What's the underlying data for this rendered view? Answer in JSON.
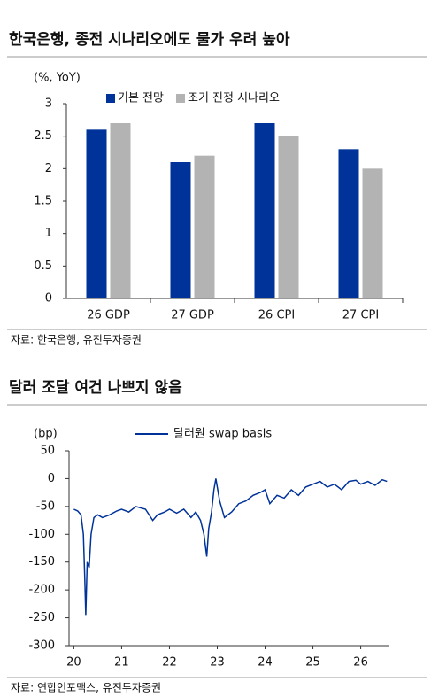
{
  "chart_data": [
    {
      "type": "bar",
      "title": "한국은행, 종전 시나리오에도 물가 우려 높아",
      "y_label": "(%, YoY)",
      "categories": [
        "26 GDP",
        "27 GDP",
        "26 CPI",
        "27 CPI"
      ],
      "series": [
        {
          "name": "기본 전망",
          "color": "#003399",
          "values": [
            2.6,
            2.1,
            2.7,
            2.3
          ]
        },
        {
          "name": "조기 진정 시나리오",
          "color": "#b3b3b3",
          "values": [
            2.7,
            2.2,
            2.5,
            2.0
          ]
        }
      ],
      "ylim": [
        0,
        3
      ],
      "yticks": [
        0,
        0.5,
        1,
        1.5,
        2,
        2.5,
        3
      ],
      "grid": false,
      "legend": "top",
      "source": "자료: 한국은행, 유진투자증권"
    },
    {
      "type": "line",
      "title": "달러 조달 여건 나쁘지 않음",
      "y_label": "(bp)",
      "x": [
        20.0,
        20.08,
        20.15,
        20.2,
        20.23,
        20.25,
        20.28,
        20.32,
        20.36,
        20.42,
        20.5,
        20.6,
        20.75,
        20.9,
        21.0,
        21.15,
        21.3,
        21.5,
        21.65,
        21.75,
        21.9,
        22.0,
        22.15,
        22.3,
        22.45,
        22.55,
        22.65,
        22.72,
        22.78,
        22.82,
        22.88,
        22.93,
        22.97,
        23.0,
        23.05,
        23.15,
        23.3,
        23.45,
        23.6,
        23.75,
        23.9,
        24.0,
        24.1,
        24.25,
        24.4,
        24.55,
        24.7,
        24.85,
        25.0,
        25.15,
        25.3,
        25.45,
        25.6,
        25.75,
        25.9,
        26.0,
        26.15,
        26.3,
        26.45,
        26.55
      ],
      "series": [
        {
          "name": "달러원 swap basis",
          "color": "#003399",
          "values": [
            -55,
            -58,
            -65,
            -100,
            -180,
            -245,
            -150,
            -160,
            -100,
            -70,
            -65,
            -70,
            -65,
            -58,
            -55,
            -60,
            -50,
            -55,
            -75,
            -65,
            -60,
            -55,
            -62,
            -55,
            -70,
            -60,
            -75,
            -100,
            -140,
            -90,
            -60,
            -20,
            0,
            -15,
            -40,
            -70,
            -60,
            -45,
            -40,
            -30,
            -25,
            -20,
            -45,
            -30,
            -35,
            -20,
            -30,
            -15,
            -10,
            -5,
            -15,
            -10,
            -20,
            -5,
            -3,
            -10,
            -5,
            -12,
            -2,
            -5
          ]
        }
      ],
      "xlim": [
        19.9,
        26.6
      ],
      "xticks": [
        20,
        21,
        22,
        23,
        24,
        25,
        26
      ],
      "ylim": [
        -300,
        50
      ],
      "yticks": [
        -300,
        -250,
        -200,
        -150,
        -100,
        -50,
        0,
        50
      ],
      "grid": false,
      "legend": "top",
      "source": "자료: 연합인포맥스, 유진투자증권"
    }
  ]
}
